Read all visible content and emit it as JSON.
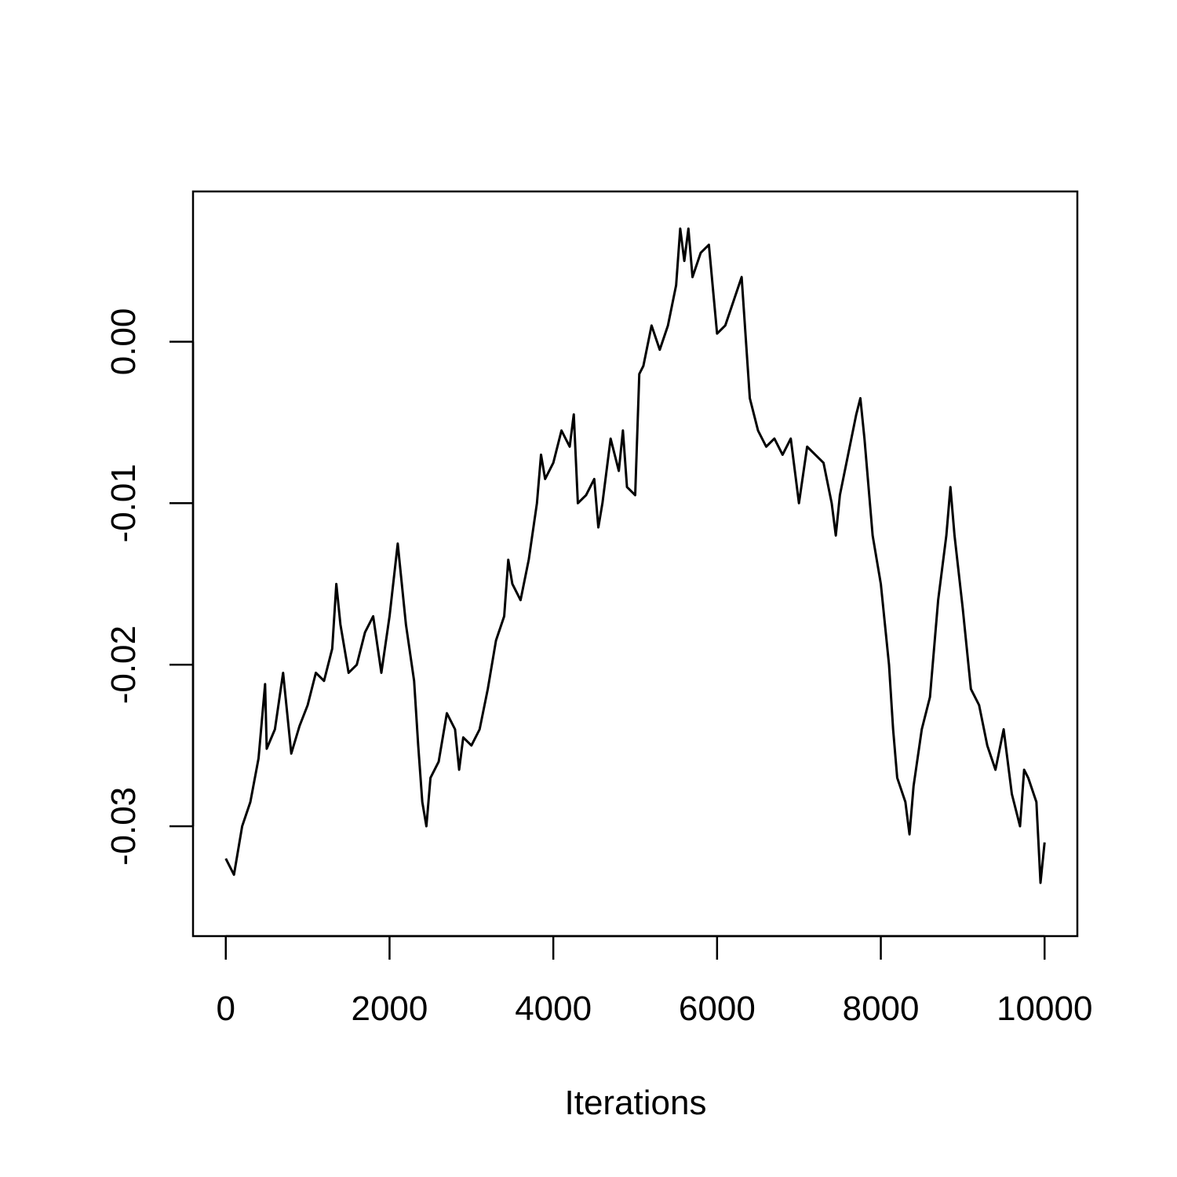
{
  "chart_data": {
    "type": "line",
    "xlabel": "Iterations",
    "color": "#000000",
    "x": [
      0,
      100,
      200,
      300,
      400,
      480,
      500,
      600,
      700,
      800,
      900,
      1000,
      1100,
      1200,
      1300,
      1350,
      1400,
      1500,
      1600,
      1700,
      1800,
      1900,
      2000,
      2100,
      2200,
      2300,
      2350,
      2400,
      2450,
      2500,
      2600,
      2700,
      2800,
      2850,
      2900,
      3000,
      3100,
      3200,
      3300,
      3400,
      3450,
      3500,
      3600,
      3700,
      3800,
      3850,
      3900,
      4000,
      4100,
      4200,
      4250,
      4300,
      4400,
      4500,
      4550,
      4600,
      4700,
      4800,
      4850,
      4900,
      5000,
      5050,
      5100,
      5200,
      5300,
      5400,
      5500,
      5550,
      5600,
      5650,
      5700,
      5800,
      5900,
      6000,
      6100,
      6200,
      6300,
      6400,
      6500,
      6600,
      6700,
      6800,
      6900,
      7000,
      7100,
      7200,
      7300,
      7400,
      7450,
      7500,
      7600,
      7700,
      7750,
      7800,
      7900,
      8000,
      8100,
      8150,
      8200,
      8300,
      8350,
      8400,
      8500,
      8600,
      8700,
      8800,
      8850,
      8900,
      9000,
      9100,
      9200,
      9300,
      9400,
      9500,
      9600,
      9700,
      9750,
      9800,
      9900,
      9950,
      10000
    ],
    "values": [
      -0.032,
      -0.033,
      -0.03,
      -0.0285,
      -0.0258,
      -0.0212,
      -0.0252,
      -0.024,
      -0.0205,
      -0.0255,
      -0.0238,
      -0.0225,
      -0.0205,
      -0.021,
      -0.019,
      -0.015,
      -0.0175,
      -0.0205,
      -0.02,
      -0.018,
      -0.017,
      -0.0205,
      -0.017,
      -0.0125,
      -0.0175,
      -0.021,
      -0.025,
      -0.0285,
      -0.03,
      -0.027,
      -0.026,
      -0.023,
      -0.024,
      -0.0265,
      -0.0245,
      -0.025,
      -0.024,
      -0.0215,
      -0.0185,
      -0.017,
      -0.0135,
      -0.015,
      -0.016,
      -0.0135,
      -0.01,
      -0.007,
      -0.0085,
      -0.0075,
      -0.0055,
      -0.0065,
      -0.0045,
      -0.01,
      -0.0095,
      -0.0085,
      -0.0115,
      -0.01,
      -0.006,
      -0.008,
      -0.0055,
      -0.009,
      -0.0095,
      -0.002,
      -0.0015,
      0.001,
      -0.0005,
      0.001,
      0.0035,
      0.007,
      0.005,
      0.007,
      0.004,
      0.0055,
      0.006,
      0.0005,
      0.001,
      0.0025,
      0.004,
      -0.0035,
      -0.0055,
      -0.0065,
      -0.006,
      -0.007,
      -0.006,
      -0.01,
      -0.0065,
      -0.007,
      -0.0075,
      -0.01,
      -0.012,
      -0.0095,
      -0.007,
      -0.0045,
      -0.0035,
      -0.006,
      -0.012,
      -0.015,
      -0.02,
      -0.024,
      -0.027,
      -0.0285,
      -0.0305,
      -0.0275,
      -0.024,
      -0.022,
      -0.016,
      -0.012,
      -0.009,
      -0.012,
      -0.0165,
      -0.0215,
      -0.0225,
      -0.025,
      -0.0265,
      -0.024,
      -0.028,
      -0.03,
      -0.0265,
      -0.027,
      -0.0285,
      -0.0335,
      -0.031
    ],
    "xlim": [
      -400,
      10400
    ],
    "ylim": [
      -0.0368,
      0.0093
    ],
    "xticks": [
      0,
      2000,
      4000,
      6000,
      8000,
      10000
    ],
    "yticks": [
      -0.03,
      -0.02,
      -0.01,
      {
        "value": 0,
        "label": "0.00"
      }
    ]
  }
}
